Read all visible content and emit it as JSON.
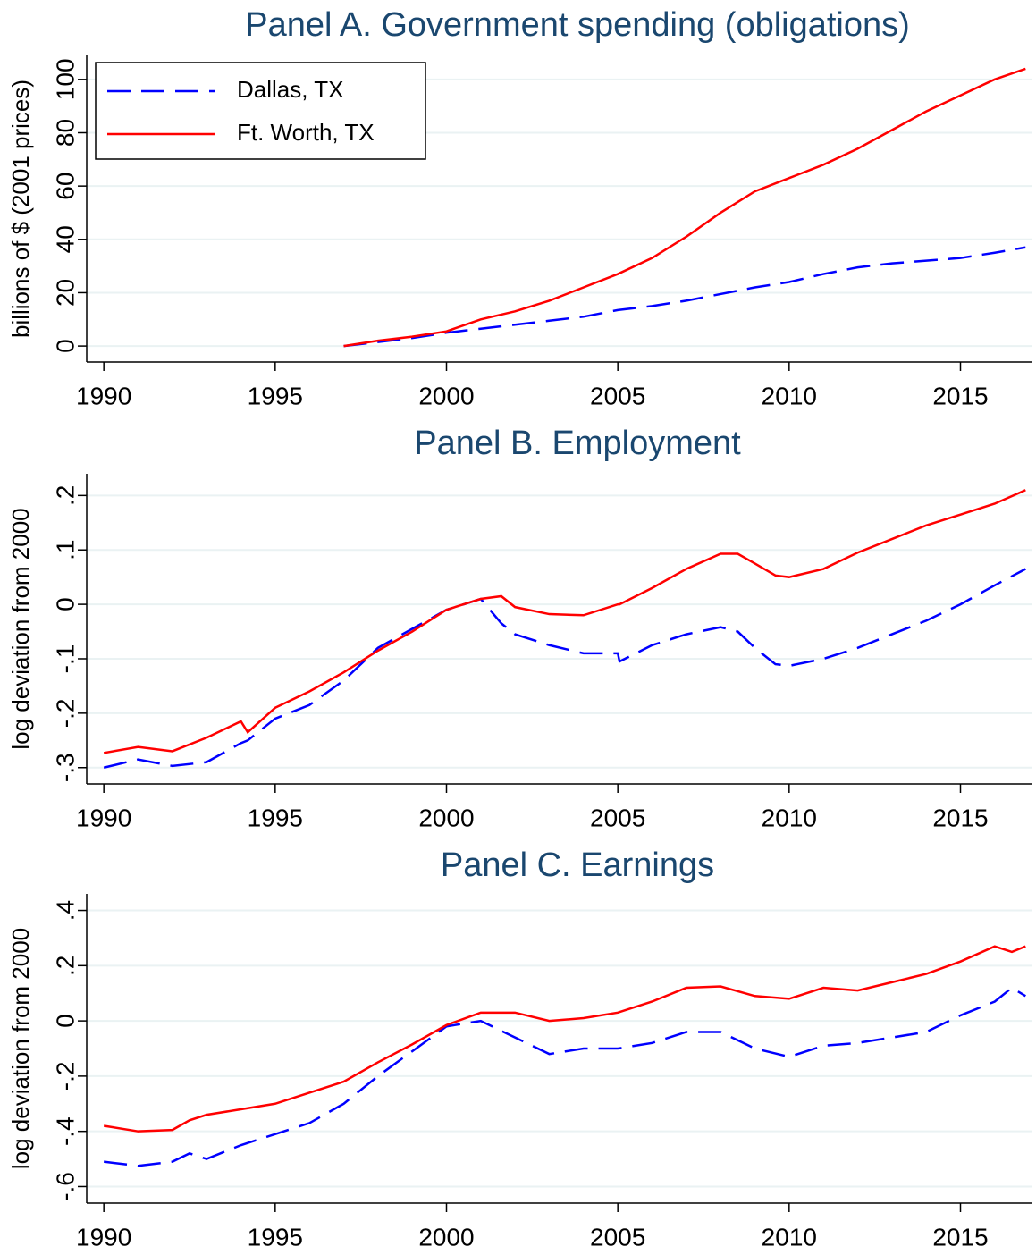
{
  "chart_data": [
    {
      "type": "line",
      "title": "Panel A. Government spending (obligations)",
      "ylabel": "billions of $ (2001 prices)",
      "x": [
        1997,
        1998,
        1999,
        2000,
        2001,
        2002,
        2003,
        2004,
        2005,
        2006,
        2007,
        2008,
        2009,
        2010,
        2011,
        2012,
        2013,
        2014,
        2015,
        2016,
        2016.9
      ],
      "series": [
        {
          "name": "Dallas, TX",
          "color": "#0000ff",
          "linestyle": "dashed",
          "values": [
            0,
            1.5,
            3,
            5,
            6.5,
            8,
            9.5,
            11,
            13.5,
            15,
            17,
            19.5,
            22,
            24,
            27,
            29.5,
            31,
            32,
            33,
            35,
            37
          ]
        },
        {
          "name": "Ft. Worth, TX",
          "color": "#ff0000",
          "linestyle": "solid",
          "values": [
            0,
            2,
            3.5,
            5.5,
            10,
            13,
            17,
            22,
            27,
            33,
            41,
            50,
            58,
            63,
            68,
            74,
            81,
            88,
            94,
            100,
            104
          ]
        }
      ],
      "xlim": [
        1989.5,
        2017.1
      ],
      "xticks": [
        1990,
        1995,
        2000,
        2005,
        2010,
        2015
      ],
      "ylim": [
        -6,
        109
      ],
      "yticks": [
        0,
        20,
        40,
        60,
        80,
        100
      ],
      "grid": true,
      "legend": "upper left"
    },
    {
      "type": "line",
      "title": "Panel B. Employment",
      "ylabel": "log deviation from 2000",
      "x": [
        1990,
        1991,
        1992,
        1993,
        1994,
        1994.2,
        1995,
        1996,
        1997,
        1998,
        1999,
        2000,
        2001,
        2001.6,
        2002,
        2003,
        2004,
        2005,
        2005.05,
        2006,
        2007,
        2008,
        2008.5,
        2009,
        2009.6,
        2010,
        2011,
        2012,
        2013,
        2014,
        2015,
        2016,
        2016.9
      ],
      "series": [
        {
          "color": "#0000ff",
          "linestyle": "dashed",
          "values": [
            -0.3,
            -0.285,
            -0.297,
            -0.29,
            -0.255,
            -0.25,
            -0.21,
            -0.185,
            -0.14,
            -0.08,
            -0.045,
            -0.01,
            0.01,
            -0.035,
            -0.055,
            -0.075,
            -0.09,
            -0.09,
            -0.105,
            -0.075,
            -0.055,
            -0.042,
            -0.05,
            -0.08,
            -0.11,
            -0.113,
            -0.1,
            -0.08,
            -0.055,
            -0.03,
            0.0,
            0.035,
            0.065
          ]
        },
        {
          "color": "#ff0000",
          "linestyle": "solid",
          "values": [
            -0.273,
            -0.262,
            -0.27,
            -0.245,
            -0.215,
            -0.235,
            -0.19,
            -0.16,
            -0.125,
            -0.085,
            -0.05,
            -0.01,
            0.01,
            0.015,
            -0.005,
            -0.018,
            -0.02,
            0.0,
            0.0,
            0.03,
            0.065,
            0.093,
            0.093,
            0.075,
            0.053,
            0.05,
            0.065,
            0.095,
            0.12,
            0.145,
            0.165,
            0.185,
            0.21
          ]
        }
      ],
      "xlim": [
        1989.5,
        2017.1
      ],
      "xticks": [
        1990,
        1995,
        2000,
        2005,
        2010,
        2015
      ],
      "ylim": [
        -0.33,
        0.24
      ],
      "yticks": [
        {
          "value": -0.3,
          "label": "-.3"
        },
        {
          "value": -0.2,
          "label": "-.2"
        },
        {
          "value": -0.1,
          "label": "-.1"
        },
        0,
        {
          "value": 0.1,
          "label": ".1"
        },
        {
          "value": 0.2,
          "label": ".2"
        }
      ],
      "grid": true
    },
    {
      "type": "line",
      "title": "Panel C. Earnings",
      "ylabel": "log deviation from 2000",
      "x": [
        1990,
        1991,
        1992,
        1992.5,
        1993,
        1994,
        1995,
        1996,
        1997,
        1998,
        1999,
        2000,
        2001,
        2002,
        2003,
        2004,
        2005,
        2006,
        2007,
        2008,
        2009,
        2010,
        2011,
        2012,
        2013,
        2014,
        2015,
        2016,
        2016.5,
        2016.9
      ],
      "series": [
        {
          "color": "#0000ff",
          "linestyle": "dashed",
          "values": [
            -0.51,
            -0.525,
            -0.51,
            -0.48,
            -0.5,
            -0.45,
            -0.41,
            -0.37,
            -0.3,
            -0.2,
            -0.11,
            -0.02,
            0.0,
            -0.06,
            -0.12,
            -0.1,
            -0.1,
            -0.08,
            -0.04,
            -0.04,
            -0.1,
            -0.13,
            -0.09,
            -0.08,
            -0.06,
            -0.04,
            0.02,
            0.07,
            0.12,
            0.09
          ]
        },
        {
          "color": "#ff0000",
          "linestyle": "solid",
          "values": [
            -0.38,
            -0.4,
            -0.395,
            -0.36,
            -0.34,
            -0.32,
            -0.3,
            -0.26,
            -0.22,
            -0.15,
            -0.085,
            -0.015,
            0.03,
            0.03,
            0.0,
            0.01,
            0.03,
            0.07,
            0.12,
            0.125,
            0.09,
            0.08,
            0.12,
            0.11,
            0.14,
            0.17,
            0.215,
            0.27,
            0.25,
            0.27
          ]
        }
      ],
      "xlim": [
        1989.5,
        2017.1
      ],
      "xticks": [
        1990,
        1995,
        2000,
        2005,
        2010,
        2015
      ],
      "ylim": [
        -0.66,
        0.46
      ],
      "yticks": [
        {
          "value": -0.6,
          "label": "-.6"
        },
        {
          "value": -0.4,
          "label": "-.4"
        },
        {
          "value": -0.2,
          "label": "-.2"
        },
        0,
        {
          "value": 0.2,
          "label": ".2"
        },
        {
          "value": 0.4,
          "label": ".4"
        }
      ],
      "grid": true
    }
  ]
}
